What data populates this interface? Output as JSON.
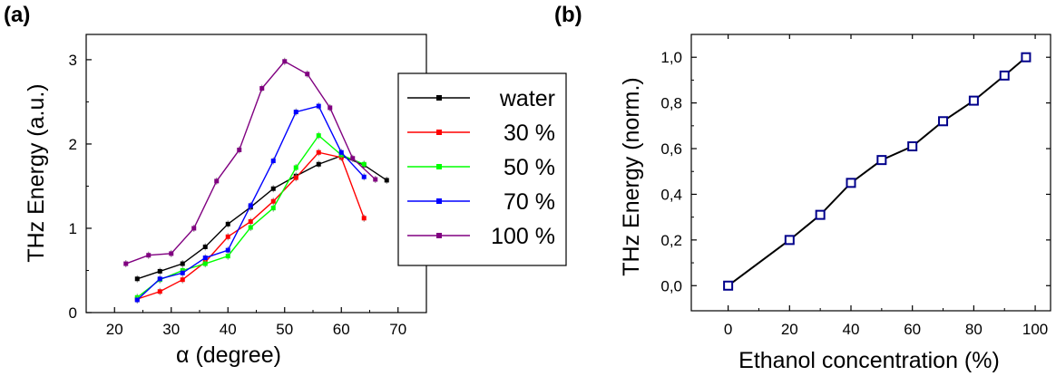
{
  "chart_data": [
    {
      "panel_label": "(a)",
      "type": "line",
      "xlabel": "α (degree)",
      "ylabel": "THz Energy (a.u.)",
      "xlim": [
        15,
        75
      ],
      "ylim": [
        0,
        3.3
      ],
      "xticks": [
        "20",
        "30",
        "40",
        "50",
        "60",
        "70"
      ],
      "yticks": [
        "0",
        "1",
        "2",
        "3"
      ],
      "legend_position": "right",
      "series": [
        {
          "name": "water",
          "color": "#000000",
          "x": [
            24,
            28,
            32,
            36,
            40,
            44,
            48,
            52,
            56,
            60,
            64,
            68
          ],
          "y": [
            0.4,
            0.49,
            0.58,
            0.78,
            1.05,
            1.25,
            1.47,
            1.62,
            1.76,
            1.86,
            1.75,
            1.57
          ]
        },
        {
          "name": "30 %",
          "color": "#ff0000",
          "x": [
            24,
            28,
            32,
            36,
            40,
            44,
            48,
            52,
            56,
            60,
            64
          ],
          "y": [
            0.16,
            0.25,
            0.39,
            0.6,
            0.9,
            1.08,
            1.32,
            1.6,
            1.9,
            1.84,
            1.12
          ]
        },
        {
          "name": "50 %",
          "color": "#00ff00",
          "x": [
            24,
            28,
            32,
            36,
            40,
            44,
            48,
            52,
            56,
            60,
            64
          ],
          "y": [
            0.18,
            0.39,
            0.5,
            0.58,
            0.67,
            1.01,
            1.24,
            1.72,
            2.1,
            1.87,
            1.76
          ]
        },
        {
          "name": "70 %",
          "color": "#0000ff",
          "x": [
            24,
            28,
            32,
            36,
            40,
            44,
            48,
            52,
            56,
            60,
            64
          ],
          "y": [
            0.15,
            0.4,
            0.47,
            0.65,
            0.74,
            1.27,
            1.8,
            2.38,
            2.45,
            1.9,
            1.61
          ]
        },
        {
          "name": "100 %",
          "color": "#800080",
          "x": [
            22,
            26,
            30,
            34,
            38,
            42,
            46,
            50,
            54,
            58,
            62,
            66
          ],
          "y": [
            0.58,
            0.68,
            0.7,
            1.0,
            1.56,
            1.93,
            2.66,
            2.98,
            2.83,
            2.43,
            1.83,
            1.58
          ]
        }
      ]
    },
    {
      "panel_label": "(b)",
      "type": "line",
      "xlabel": "Ethanol concentration (%)",
      "ylabel": "THz Energy (norm.)",
      "xlim": [
        -12,
        105
      ],
      "ylim": [
        -0.11,
        1.1
      ],
      "xticks": [
        "0",
        "20",
        "40",
        "60",
        "80",
        "100"
      ],
      "yticks": [
        "0,0",
        "0,2",
        "0,4",
        "0,6",
        "0,8",
        "1,0"
      ],
      "series": [
        {
          "color": "#00008b",
          "x": [
            0,
            20,
            30,
            40,
            50,
            60,
            70,
            80,
            90,
            97
          ],
          "y": [
            0.0,
            0.2,
            0.31,
            0.45,
            0.55,
            0.61,
            0.72,
            0.81,
            0.92,
            1.0
          ]
        }
      ]
    }
  ]
}
